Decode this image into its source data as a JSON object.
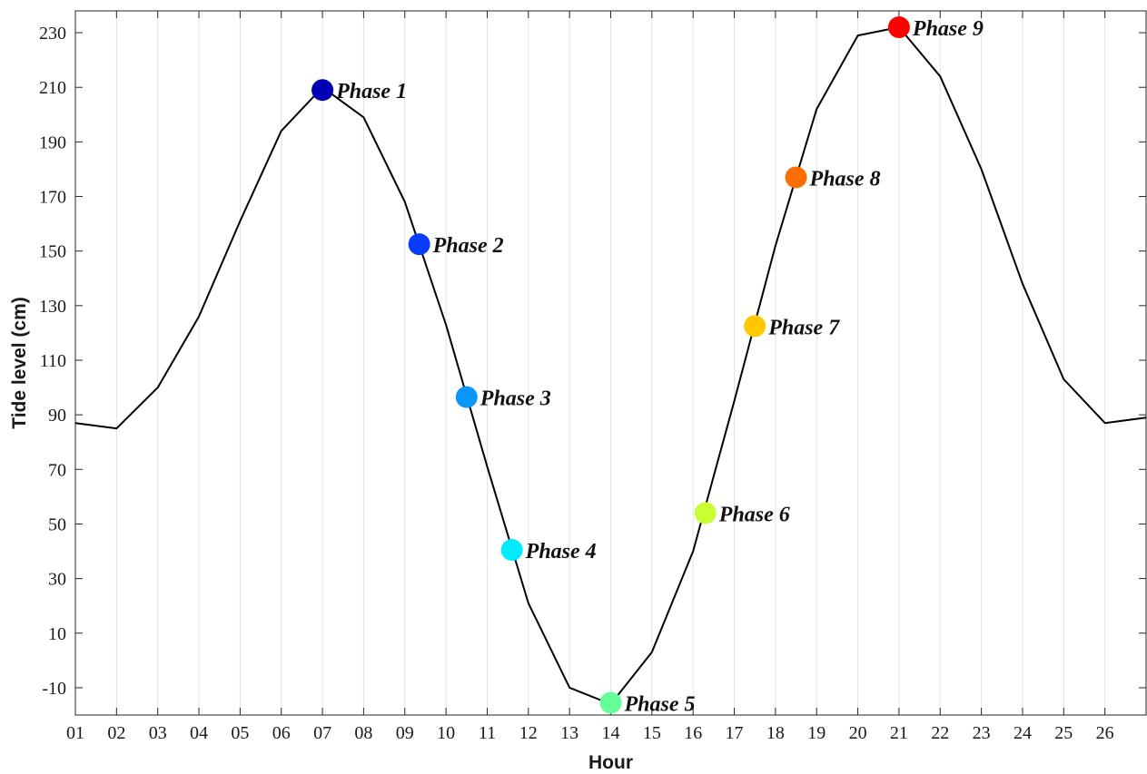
{
  "chart_data": {
    "type": "line",
    "title": "",
    "xlabel": "Hour",
    "ylabel": "Tide level (cm)",
    "x_tick_labels": [
      "01",
      "02",
      "03",
      "04",
      "05",
      "06",
      "07",
      "08",
      "09",
      "10",
      "11",
      "12",
      "13",
      "14",
      "15",
      "16",
      "17",
      "18",
      "19",
      "20",
      "21",
      "22",
      "23",
      "24",
      "25",
      "26"
    ],
    "xlim": [
      1,
      27
    ],
    "y_ticks": [
      -10,
      10,
      30,
      50,
      70,
      90,
      110,
      130,
      150,
      170,
      190,
      210,
      230
    ],
    "ylim": [
      -20,
      238
    ],
    "grid": "vertical",
    "line_color": "#000000",
    "series": [
      {
        "x": [
          1,
          2,
          3,
          4,
          5,
          6,
          7,
          8,
          9,
          10,
          11,
          12,
          13,
          14,
          15,
          16,
          17,
          18,
          19,
          20,
          21,
          22,
          23,
          24,
          25,
          26,
          27
        ],
        "y": [
          87,
          85,
          100,
          126,
          161,
          194,
          210,
          199,
          168,
          123,
          71,
          21,
          -10,
          -16,
          3,
          40,
          95,
          152,
          202,
          229,
          232,
          214,
          180,
          138,
          103,
          87,
          89
        ]
      }
    ],
    "phases": [
      {
        "label": "Phase 1",
        "x": 7.0,
        "y": 209,
        "color": "#0000b4"
      },
      {
        "label": "Phase 2",
        "x": 9.35,
        "y": 152.5,
        "color": "#0a3cff"
      },
      {
        "label": "Phase 3",
        "x": 10.5,
        "y": 96.5,
        "color": "#0a96ff"
      },
      {
        "label": "Phase 4",
        "x": 11.6,
        "y": 40.5,
        "color": "#00ebff"
      },
      {
        "label": "Phase 5",
        "x": 14.0,
        "y": -15.5,
        "color": "#64ff96"
      },
      {
        "label": "Phase 6",
        "x": 16.3,
        "y": 54,
        "color": "#c8ff32"
      },
      {
        "label": "Phase 7",
        "x": 17.5,
        "y": 122.5,
        "color": "#ffc800"
      },
      {
        "label": "Phase 8",
        "x": 18.5,
        "y": 177,
        "color": "#ff6e00"
      },
      {
        "label": "Phase 9",
        "x": 21.0,
        "y": 232,
        "color": "#ff0000"
      }
    ]
  }
}
